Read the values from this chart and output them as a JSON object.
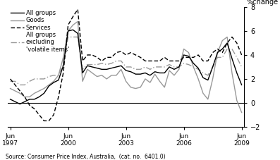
{
  "ylabel": "%change",
  "source": "Source: Consumer Price Index, Australia,  (cat. no.  6401.0)",
  "ylim": [
    -2,
    8
  ],
  "yticks": [
    -2,
    0,
    2,
    4,
    6,
    8
  ],
  "xtick_positions": [
    0,
    12,
    24,
    36,
    48
  ],
  "xtick_labels": [
    "Jun\n1997",
    "Jun\n2000",
    "Jun\n2003",
    "Jun\n2006",
    "Jun\n2009"
  ],
  "all_groups": [
    0.3,
    0.1,
    -0.1,
    0.1,
    0.3,
    0.3,
    0.5,
    0.8,
    1.4,
    1.7,
    1.9,
    3.1,
    6.0,
    6.1,
    5.8,
    2.5,
    3.1,
    3.0,
    2.9,
    2.8,
    2.8,
    2.9,
    3.0,
    3.1,
    2.7,
    2.6,
    2.4,
    2.4,
    2.5,
    2.3,
    2.6,
    2.5,
    2.5,
    3.0,
    2.8,
    3.0,
    4.0,
    3.9,
    3.3,
    2.9,
    2.1,
    1.9,
    3.0,
    4.2,
    4.5,
    5.0,
    3.7,
    2.5,
    1.5
  ],
  "goods": [
    1.2,
    1.0,
    0.8,
    0.5,
    0.5,
    0.8,
    1.0,
    1.2,
    1.5,
    1.8,
    2.3,
    3.8,
    6.0,
    6.5,
    6.8,
    1.8,
    2.8,
    2.5,
    2.2,
    2.3,
    2.0,
    2.3,
    2.3,
    2.8,
    1.8,
    1.3,
    1.2,
    1.3,
    2.0,
    1.7,
    2.4,
    1.8,
    1.3,
    2.7,
    2.3,
    2.8,
    4.5,
    4.2,
    3.0,
    2.0,
    0.8,
    0.3,
    2.0,
    4.2,
    5.2,
    5.5,
    2.5,
    0.2,
    -0.8
  ],
  "services": [
    2.0,
    1.5,
    1.0,
    0.5,
    -0.2,
    -0.5,
    -1.0,
    -1.5,
    -1.5,
    -1.0,
    0.5,
    2.5,
    6.5,
    7.2,
    7.8,
    3.5,
    4.0,
    4.0,
    3.8,
    3.5,
    3.8,
    3.8,
    4.2,
    4.3,
    4.0,
    4.2,
    4.0,
    3.8,
    3.5,
    3.5,
    3.5,
    3.5,
    3.8,
    3.5,
    3.5,
    3.5,
    3.8,
    3.8,
    3.8,
    4.0,
    3.5,
    3.5,
    4.2,
    4.5,
    4.2,
    5.0,
    5.5,
    5.0,
    4.0
  ],
  "excl_volatile": [
    1.8,
    1.8,
    1.5,
    1.5,
    1.8,
    2.0,
    2.0,
    2.0,
    2.2,
    2.3,
    2.3,
    3.2,
    5.5,
    5.5,
    5.5,
    2.8,
    3.2,
    3.2,
    3.2,
    3.3,
    3.2,
    3.3,
    3.5,
    3.5,
    3.0,
    3.0,
    2.8,
    2.8,
    3.0,
    2.8,
    3.0,
    3.0,
    3.0,
    3.2,
    3.0,
    3.0,
    3.3,
    3.2,
    3.0,
    2.8,
    2.5,
    2.3,
    3.0,
    3.8,
    3.8,
    4.5,
    4.5,
    3.8,
    3.0
  ],
  "color_all_groups": "#000000",
  "color_goods": "#999999",
  "color_services": "#000000",
  "color_excl_volatile": "#999999",
  "lw_solid": 1.0,
  "lw_dashed": 1.0
}
